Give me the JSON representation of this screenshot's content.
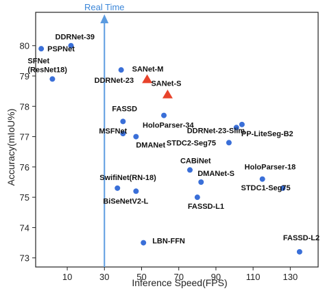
{
  "chart_data": {
    "type": "scatter",
    "xlabel": "Inference Speed(FPS)",
    "ylabel": "Accuracy(mIoU%)",
    "xlim": [
      -7,
      145
    ],
    "ylim": [
      72.7,
      81.1
    ],
    "xticks": [
      10,
      30,
      50,
      70,
      90,
      110,
      130
    ],
    "yticks": [
      73,
      74,
      75,
      76,
      77,
      78,
      79,
      80
    ],
    "grid": false,
    "colors": {
      "circle": "#3a6fd8",
      "triangle": "#e8432b",
      "realtime": "#5b9be0"
    },
    "reference_line": {
      "x": 30,
      "label": "Real Time"
    },
    "points": [
      {
        "label": "PSPNet",
        "x": -4,
        "y": 79.9,
        "marker": "circle"
      },
      {
        "label": "DDRNet-39",
        "x": 12,
        "y": 80.0,
        "marker": "circle"
      },
      {
        "label": "SFNet\n(ResNet18)",
        "x": 2,
        "y": 78.9,
        "marker": "circle"
      },
      {
        "label": "DDRNet-23",
        "x": 39,
        "y": 79.2,
        "marker": "circle"
      },
      {
        "label": "SANet-M",
        "x": 53,
        "y": 78.9,
        "marker": "triangle"
      },
      {
        "label": "SANet-S",
        "x": 64,
        "y": 78.4,
        "marker": "triangle"
      },
      {
        "label": "FASSD",
        "x": 40,
        "y": 77.5,
        "marker": "circle"
      },
      {
        "label": "HoloParser-34",
        "x": 62,
        "y": 77.7,
        "marker": "circle"
      },
      {
        "label": "MSFNet",
        "x": 40,
        "y": 77.1,
        "marker": "circle"
      },
      {
        "label": "DMANet",
        "x": 47,
        "y": 77.0,
        "marker": "circle"
      },
      {
        "label": "DDRNet-23-Slim",
        "x": 101,
        "y": 77.3,
        "marker": "circle"
      },
      {
        "label": "PP-LiteSeg-B2",
        "x": 104,
        "y": 77.4,
        "marker": "circle"
      },
      {
        "label": "STDC2-Seg75",
        "x": 97,
        "y": 76.8,
        "marker": "circle"
      },
      {
        "label": "CABiNet",
        "x": 76,
        "y": 75.9,
        "marker": "circle"
      },
      {
        "label": "DMANet-S",
        "x": 82,
        "y": 75.5,
        "marker": "circle"
      },
      {
        "label": "HoloParser-18",
        "x": 115,
        "y": 75.6,
        "marker": "circle"
      },
      {
        "label": "STDC1-Seg75",
        "x": 126,
        "y": 75.3,
        "marker": "circle"
      },
      {
        "label": "SwifiNet(RN-18)",
        "x": 37,
        "y": 75.3,
        "marker": "circle"
      },
      {
        "label": "BiSeNetV2-L",
        "x": 47,
        "y": 75.2,
        "marker": "circle"
      },
      {
        "label": "FASSD-L1",
        "x": 80,
        "y": 75.0,
        "marker": "circle"
      },
      {
        "label": "LBN-FFN",
        "x": 51,
        "y": 73.5,
        "marker": "circle"
      },
      {
        "label": "FASSD-L2",
        "x": 135,
        "y": 73.2,
        "marker": "circle"
      }
    ]
  }
}
